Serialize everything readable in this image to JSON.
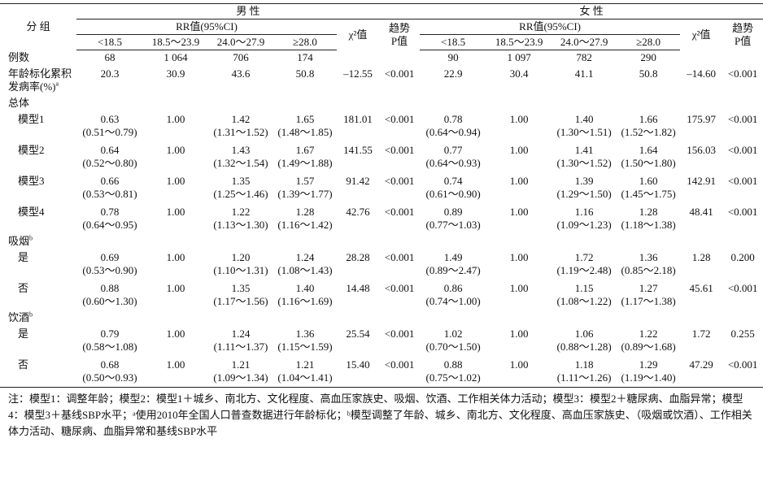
{
  "header": {
    "group": "分 组",
    "sexes": [
      "男 性",
      "女 性"
    ],
    "rr": "RR值(95%CI)",
    "chi": "χ²值",
    "trend": [
      "趋势",
      "P值"
    ],
    "bins": [
      "<18.5",
      "18.5～23.9",
      "24.0～27.9",
      "≥28.0"
    ]
  },
  "body": {
    "rows": [
      {
        "label": "例数",
        "cells": [
          "68",
          "1 064",
          "706",
          "174",
          null,
          null,
          "90",
          "1 097",
          "782",
          "290",
          null,
          null
        ]
      },
      {
        "label": [
          "年龄标化累积",
          "发病率(%)"
        ],
        "sup": "a",
        "cells": [
          "20.3",
          "30.9",
          "43.6",
          "50.8",
          "–12.55",
          "<0.001",
          "22.9",
          "30.4",
          "41.1",
          "50.8",
          "–14.60",
          "<0.001"
        ]
      },
      {
        "title": "总体",
        "rows": [
          {
            "label": "模型1",
            "cells": [
              [
                "0.63",
                "(0.51～0.79)"
              ],
              "1.00",
              [
                "1.42",
                "(1.31～1.52)"
              ],
              [
                "1.65",
                "(1.48～1.85)"
              ],
              "181.01",
              "<0.001",
              [
                "0.78",
                "(0.64～0.94)"
              ],
              "1.00",
              [
                "1.40",
                "(1.30～1.51)"
              ],
              [
                "1.66",
                "(1.52～1.82)"
              ],
              "175.97",
              "<0.001"
            ]
          },
          {
            "label": "模型2",
            "cells": [
              [
                "0.64",
                "(0.52～0.80)"
              ],
              "1.00",
              [
                "1.43",
                "(1.32～1.54)"
              ],
              [
                "1.67",
                "(1.49～1.88)"
              ],
              "141.55",
              "<0.001",
              [
                "0.77",
                "(0.64～0.93)"
              ],
              "1.00",
              [
                "1.41",
                "(1.30～1.52)"
              ],
              [
                "1.64",
                "(1.50～1.80)"
              ],
              "156.03",
              "<0.001"
            ]
          },
          {
            "label": "模型3",
            "cells": [
              [
                "0.66",
                "(0.53～0.81)"
              ],
              "1.00",
              [
                "1.35",
                "(1.25～1.46)"
              ],
              [
                "1.57",
                "(1.39～1.77)"
              ],
              "91.42",
              "<0.001",
              [
                "0.74",
                "(0.61～0.90)"
              ],
              "1.00",
              [
                "1.39",
                "(1.29～1.50)"
              ],
              [
                "1.60",
                "(1.45～1.75)"
              ],
              "142.91",
              "<0.001"
            ]
          },
          {
            "label": "模型4",
            "cells": [
              [
                "0.78",
                "(0.64～0.95)"
              ],
              "1.00",
              [
                "1.22",
                "(1.13～1.30)"
              ],
              [
                "1.28",
                "(1.16～1.42)"
              ],
              "42.76",
              "<0.001",
              [
                "0.89",
                "(0.77～1.03)"
              ],
              "1.00",
              [
                "1.16",
                "(1.09～1.23)"
              ],
              [
                "1.28",
                "(1.18～1.38)"
              ],
              "48.41",
              "<0.001"
            ]
          }
        ]
      },
      {
        "title": "吸烟",
        "sup": "b",
        "rows": [
          {
            "label": "是",
            "cells": [
              [
                "0.69",
                "(0.53～0.90)"
              ],
              "1.00",
              [
                "1.20",
                "(1.10～1.31)"
              ],
              [
                "1.24",
                "(1.08～1.43)"
              ],
              "28.28",
              "<0.001",
              [
                "1.49",
                "(0.89～2.47)"
              ],
              "1.00",
              [
                "1.72",
                "(1.19～2.48)"
              ],
              [
                "1.36",
                "(0.85～2.18)"
              ],
              "1.28",
              "0.200"
            ]
          },
          {
            "label": "否",
            "cells": [
              [
                "0.88",
                "(0.60～1.30)"
              ],
              "1.00",
              [
                "1.35",
                "(1.17～1.56)"
              ],
              [
                "1.40",
                "(1.16～1.69)"
              ],
              "14.48",
              "<0.001",
              [
                "0.86",
                "(0.74～1.00)"
              ],
              "1.00",
              [
                "1.15",
                "(1.08～1.22)"
              ],
              [
                "1.27",
                "(1.17～1.38)"
              ],
              "45.61",
              "<0.001"
            ]
          }
        ]
      },
      {
        "title": "饮酒",
        "sup": "b",
        "rows": [
          {
            "label": "是",
            "cells": [
              [
                "0.79",
                "(0.58～1.08)"
              ],
              "1.00",
              [
                "1.24",
                "(1.11～1.37)"
              ],
              [
                "1.36",
                "(1.15～1.59)"
              ],
              "25.54",
              "<0.001",
              [
                "1.02",
                "(0.70～1.50)"
              ],
              "1.00",
              [
                "1.06",
                "(0.88～1.28)"
              ],
              [
                "1.22",
                "(0.89～1.68)"
              ],
              "1.72",
              "0.255"
            ]
          },
          {
            "label": "否",
            "cells": [
              [
                "0.68",
                "(0.50～0.93)"
              ],
              "1.00",
              [
                "1.21",
                "(1.09～1.34)"
              ],
              [
                "1.21",
                "(1.04～1.41)"
              ],
              "15.40",
              "<0.001",
              [
                "0.88",
                "(0.75～1.02)"
              ],
              "1.00",
              [
                "1.18",
                "(1.11～1.26)"
              ],
              [
                "1.29",
                "(1.19～1.40)"
              ],
              "47.29",
              "<0.001"
            ]
          }
        ]
      }
    ]
  },
  "note": "注：模型1：调整年龄；模型2：模型1＋城乡、南北方、文化程度、高血压家族史、吸烟、饮酒、工作相关体力活动；模型3：模型2＋糖尿病、血脂异常；模型4：模型3＋基线SBP水平；ᵃ使用2010年全国人口普查数据进行年龄标化；ᵇ模型调整了年龄、城乡、南北方、文化程度、高血压家族史、（吸烟或饮酒）、工作相关体力活动、糖尿病、血脂异常和基线SBP水平"
}
